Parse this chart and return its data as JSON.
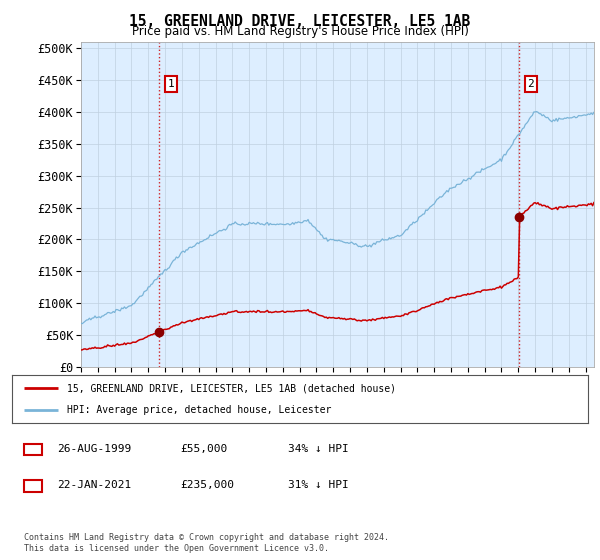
{
  "title": "15, GREENLAND DRIVE, LEICESTER, LE5 1AB",
  "subtitle": "Price paid vs. HM Land Registry's House Price Index (HPI)",
  "ytick_values": [
    0,
    50000,
    100000,
    150000,
    200000,
    250000,
    300000,
    350000,
    400000,
    450000,
    500000
  ],
  "ylim": [
    0,
    510000
  ],
  "hpi_color": "#7ab4d8",
  "price_color": "#cc0000",
  "marker_color": "#8b0000",
  "annotation_box_color": "#cc0000",
  "chart_bg": "#ddeeff",
  "purchase1": {
    "date_label": "26-AUG-1999",
    "price": 55000,
    "label": "1",
    "x_year": 1999.65
  },
  "purchase2": {
    "date_label": "22-JAN-2021",
    "price": 235000,
    "label": "2",
    "x_year": 2021.05
  },
  "legend_line1": "15, GREENLAND DRIVE, LEICESTER, LE5 1AB (detached house)",
  "legend_line2": "HPI: Average price, detached house, Leicester",
  "footer": "Contains HM Land Registry data © Crown copyright and database right 2024.\nThis data is licensed under the Open Government Licence v3.0.",
  "xmin": 1995.0,
  "xmax": 2025.5,
  "background_color": "#ffffff",
  "grid_color": "#c0d0e0"
}
